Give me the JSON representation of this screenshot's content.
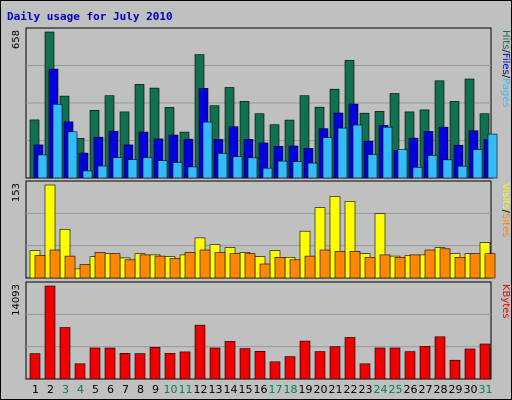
{
  "chart_data": {
    "type": "bar",
    "title": "Daily usage for July 2010",
    "colors": {
      "hits": "#107050",
      "files": "#0000dd",
      "pages": "#33bbff",
      "visits": "#ffff00",
      "sites": "#ff8800",
      "kbytes": "#ee0000",
      "weekend_label": "#008050",
      "weekday_label": "#000000",
      "plot_bg": "#c0c0c0",
      "grid": "#999999"
    },
    "categories": [
      "1",
      "2",
      "3",
      "4",
      "5",
      "6",
      "7",
      "8",
      "9",
      "10",
      "11",
      "12",
      "13",
      "14",
      "15",
      "16",
      "17",
      "18",
      "19",
      "20",
      "21",
      "22",
      "23",
      "24",
      "25",
      "26",
      "27",
      "28",
      "29",
      "30",
      "31"
    ],
    "weekend_days": [
      "3",
      "4",
      "10",
      "11",
      "17",
      "18",
      "24",
      "25",
      "31"
    ],
    "panels": [
      {
        "id": "top",
        "ymax_label": "658",
        "ylim": [
          0,
          658
        ],
        "legend": [
          {
            "text": "Hits",
            "color": "#107050"
          },
          {
            "text": "/",
            "color": "#000000"
          },
          {
            "text": "Files",
            "color": "#0000dd"
          },
          {
            "text": "/",
            "color": "#000000"
          },
          {
            "text": "Pages",
            "color": "#33bbff"
          }
        ],
        "series": [
          {
            "name": "Hits",
            "color": "#107050",
            "values": [
              262,
              658,
              369,
              179,
              305,
              371,
              298,
              422,
              405,
              318,
              207,
              556,
              326,
              408,
              345,
              290,
              240,
              261,
              371,
              319,
              400,
              530,
              292,
              300,
              381,
              298,
              307,
              438,
              345,
              446,
              290
            ]
          },
          {
            "name": "Files",
            "color": "#0000dd",
            "values": [
              149,
              491,
              253,
              112,
              184,
              211,
              149,
              207,
              176,
              194,
              175,
              404,
              174,
              231,
              174,
              158,
              143,
              144,
              134,
              222,
              293,
              333,
              166,
              237,
              124,
              180,
              210,
              229,
              148,
              213,
              173
            ]
          },
          {
            "name": "Pages",
            "color": "#33bbff",
            "values": [
              104,
              332,
              208,
              32,
              54,
              92,
              83,
              92,
              78,
              70,
              50,
              252,
              111,
              96,
              91,
              44,
              76,
              74,
              67,
              182,
              225,
              239,
              106,
              229,
              128,
              48,
              102,
              82,
              53,
              128,
              198
            ]
          }
        ]
      },
      {
        "id": "middle",
        "ymax_label": "153",
        "ylim": [
          0,
          153
        ],
        "legend": [
          {
            "text": "Visits",
            "color": "#ffff00"
          },
          {
            "text": "/",
            "color": "#000000"
          },
          {
            "text": "Sites",
            "color": "#ff8800"
          }
        ],
        "series": [
          {
            "name": "Visits",
            "color": "#ffff00",
            "values": [
              45,
              153,
              80,
              15,
              35,
              40,
              33,
              40,
              38,
              35,
              38,
              66,
              55,
              50,
              42,
              35,
              45,
              34,
              77,
              116,
              134,
              126,
              40,
              106,
              36,
              37,
              38,
              50,
              40,
              40,
              58
            ]
          },
          {
            "name": "Sites",
            "color": "#ff8800",
            "values": [
              37,
              46,
              36,
              22,
              42,
              40,
              30,
              38,
              36,
              32,
              42,
              46,
              42,
              40,
              40,
              23,
              34,
              30,
              36,
              46,
              44,
              44,
              34,
              38,
              34,
              38,
              46,
              48,
              34,
              40,
              40
            ]
          }
        ]
      },
      {
        "id": "bottom",
        "ymax_label": "14093",
        "ylim": [
          0,
          14093
        ],
        "legend": [
          {
            "text": "KBytes",
            "color": "#ee0000"
          }
        ],
        "series": [
          {
            "name": "KBytes",
            "color": "#ee0000",
            "values": [
              3850,
              14093,
              7800,
              2300,
              4700,
              4700,
              3900,
              3850,
              4800,
              3900,
              4100,
              8150,
              4700,
              5700,
              4600,
              4200,
              2600,
              3400,
              5750,
              4150,
              4900,
              6300,
              2300,
              4700,
              4700,
              4150,
              4950,
              6400,
              2850,
              4550,
              5300
            ]
          }
        ]
      }
    ]
  }
}
